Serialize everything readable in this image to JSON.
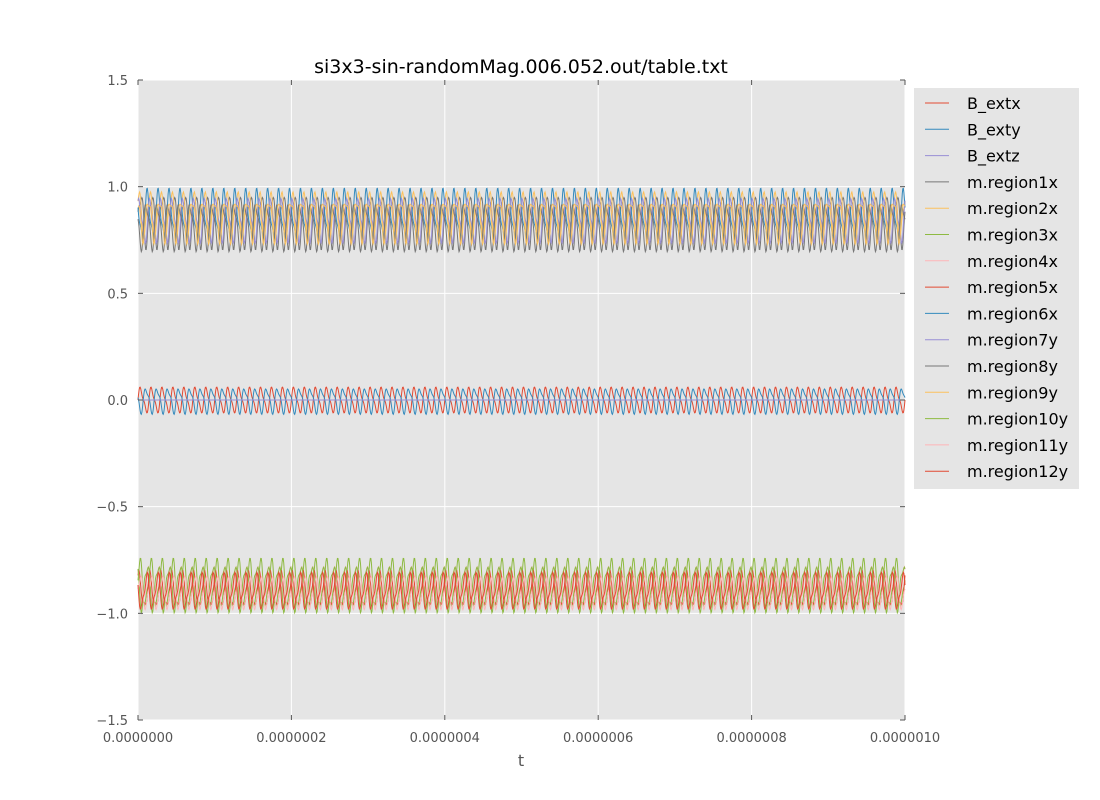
{
  "chart_data": {
    "type": "line",
    "title": "si3x3-sin-randomMag.006.052.out/table.txt",
    "xlabel": "t",
    "ylabel": "",
    "xlim": [
      0,
      1e-06
    ],
    "ylim": [
      -1.5,
      1.5
    ],
    "x_ticks": [
      "0.0000000",
      "0.0000002",
      "0.0000004",
      "0.0000006",
      "0.0000008",
      "0.0000010"
    ],
    "y_ticks": [
      "1.5",
      "1.0",
      "0.5",
      "0.0",
      "−0.5",
      "−1.0",
      "−1.5"
    ],
    "y_tick_values": [
      1.5,
      1.0,
      0.5,
      0.0,
      -0.5,
      -1.0,
      -1.5
    ],
    "grid": true,
    "legend_position": "outside right",
    "oscillation_cycles": 70,
    "series": [
      {
        "name": "B_extx",
        "color": "#E24A33",
        "center": 0.0,
        "amplitude": 0.07,
        "phase": 0.0
      },
      {
        "name": "B_exty",
        "color": "#348ABD",
        "center": 0.0,
        "amplitude": 0.07,
        "phase": 3.1416
      },
      {
        "name": "B_extz",
        "color": "#988ED5",
        "center": 0.0,
        "amplitude": 0.0,
        "phase": 0.0
      },
      {
        "name": "m.region1x",
        "color": "#777777",
        "center": 0.85,
        "amplitude": 0.15,
        "phase": 0.0
      },
      {
        "name": "m.region2x",
        "color": "#FBC15E",
        "center": 0.87,
        "amplitude": 0.13,
        "phase": 1.2
      },
      {
        "name": "m.region3x",
        "color": "#8EBA42",
        "center": -0.86,
        "amplitude": 0.13,
        "phase": 0.5
      },
      {
        "name": "m.region4x",
        "color": "#FFB5B8",
        "center": -0.88,
        "amplitude": 0.1,
        "phase": 2.1
      },
      {
        "name": "m.region5x",
        "color": "#E24A33",
        "center": -0.9,
        "amplitude": 0.1,
        "phase": 1.0
      },
      {
        "name": "m.region6x",
        "color": "#348ABD",
        "center": 0.86,
        "amplitude": 0.14,
        "phase": 2.4
      },
      {
        "name": "m.region7y",
        "color": "#988ED5",
        "center": 0.84,
        "amplitude": 0.12,
        "phase": 0.8
      },
      {
        "name": "m.region8y",
        "color": "#777777",
        "center": 0.82,
        "amplitude": 0.13,
        "phase": 3.0
      },
      {
        "name": "m.region9y",
        "color": "#FBC15E",
        "center": 0.85,
        "amplitude": 0.12,
        "phase": 1.9
      },
      {
        "name": "m.region10y",
        "color": "#8EBA42",
        "center": -0.87,
        "amplitude": 0.13,
        "phase": 2.6
      },
      {
        "name": "m.region11y",
        "color": "#FFB5B8",
        "center": -0.9,
        "amplitude": 0.09,
        "phase": 0.3
      },
      {
        "name": "m.region12y",
        "color": "#E24A33",
        "center": -0.9,
        "amplitude": 0.1,
        "phase": 2.8
      }
    ]
  },
  "colors": {
    "plot_background": "#E5E5E5",
    "grid": "#FFFFFF",
    "legend_background": "#E5E5E5"
  }
}
